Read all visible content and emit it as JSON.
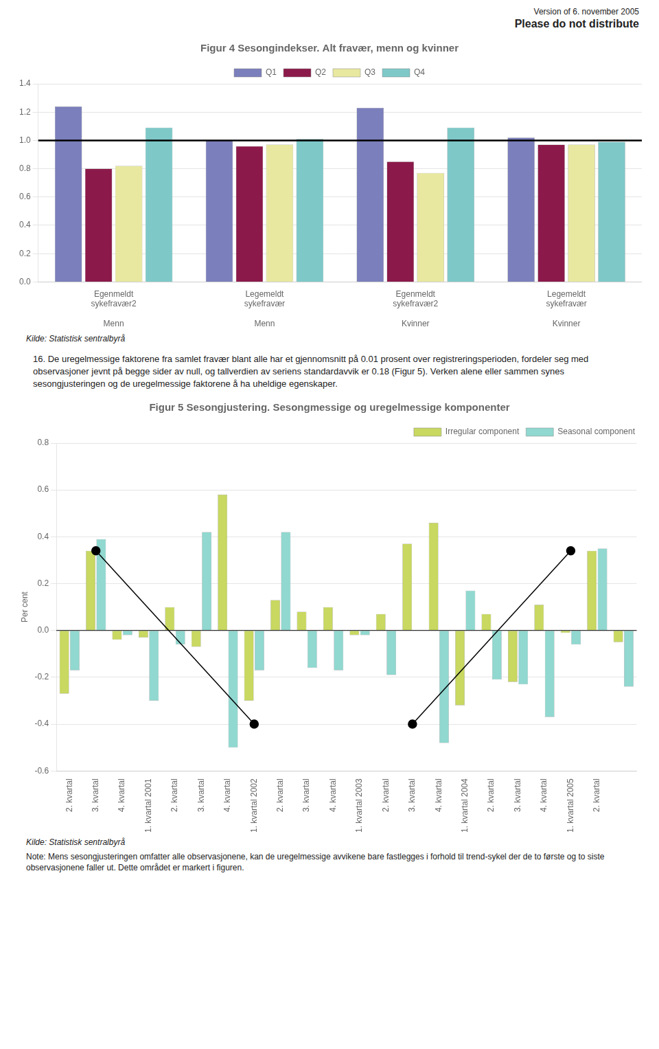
{
  "chart_data": [
    {
      "type": "bar",
      "title": "Figur 4 Sesongindekser. Alt fravær, menn og kvinner",
      "annotations": [
        "Version of 6. november 2005",
        "Please do not distribute",
        "Kilde: Statistisk sentralbyrå",
        "16. De uregelmessige faktorene fra samlet fravær blant alle har et gjennomsnitt på 0.01 prosent over registreringsperioden, fordeler seg med observasjoner jevnt på begge sider av null, og tallverdien av seriens standardavvik er 0.18 (Figur 5). Verken alene eller sammen synes sesongjusteringen og de uregelmessige faktorene å ha uheldige egenskaper."
      ],
      "categories": [
        "Egenmeldt\nsykefravær2\n\nMenn",
        "Legemeldt\nsykefravær\n\nMenn",
        "Egenmeldt\nsykefravær2\n\nKvinner",
        "Legemeldt\nsykefravær\n\nKvinner"
      ],
      "series": [
        {
          "name": "Q1",
          "color": "#7B7FBB",
          "values": [
            1.24,
            1.0,
            1.23,
            1.02
          ]
        },
        {
          "name": "Q2",
          "color": "#8B1A4A",
          "values": [
            0.8,
            0.96,
            0.85,
            0.97
          ]
        },
        {
          "name": "Q3",
          "color": "#E8E8A0",
          "values": [
            0.82,
            0.97,
            0.77,
            0.97
          ]
        },
        {
          "name": "Q4",
          "color": "#7EC8C8",
          "values": [
            1.09,
            1.01,
            1.09,
            0.99
          ]
        }
      ],
      "hline": 1.0,
      "ylim": [
        0.0,
        1.4
      ],
      "yticks": [
        {
          "value": 0.0,
          "label": "0.0"
        },
        0.2,
        0.4,
        0.6,
        0.8,
        {
          "value": 1.0,
          "label": "1.0"
        },
        1.2,
        1.4
      ],
      "grid": true,
      "legend": "upper center"
    },
    {
      "type": "bar",
      "title": "Figur 5 Sesongjustering. Sesongmessige og uregelmessige komponenter",
      "ylabel": "Per cent",
      "annotations": [
        "Kilde: Statistisk sentralbyrå",
        "Note: Mens sesongjusteringen omfatter alle observasjonene, kan de uregelmessige avvikene bare fastlegges i forhold til trend-sykel der de to første og to siste observasjonene faller ut. Dette området er markert i figuren."
      ],
      "categories": [
        "2. kvartal",
        "3. kvartal",
        "4. kvartal",
        "1. kvartal 2001",
        "2. kvartal",
        "3. kvartal",
        "4. kvartal",
        "1. kvartal 2002",
        "2. kvartal",
        "3. kvartal",
        "4. kvartal",
        "1. kvartal 2003",
        "2. kvartal",
        "3. kvartal",
        "4. kvartal",
        "1. kvartal 2004",
        "2. kvartal",
        "3. kvartal",
        "4. kvartal",
        "1. kvartal 2005",
        "2. kvartal",
        null
      ],
      "series": [
        {
          "name": "Irregular component",
          "color": "#C8D860",
          "values": [
            -0.27,
            0.34,
            -0.04,
            -0.03,
            0.1,
            -0.07,
            0.58,
            -0.3,
            0.13,
            0.08,
            0.1,
            -0.02,
            0.07,
            0.37,
            0.46,
            -0.32,
            0.07,
            -0.22,
            0.11,
            -0.01,
            0.34,
            -0.05
          ]
        },
        {
          "name": "Seasonal component",
          "color": "#90D8D0",
          "values": [
            -0.17,
            0.39,
            -0.02,
            -0.3,
            -0.06,
            0.42,
            -0.5,
            -0.17,
            0.42,
            -0.16,
            -0.17,
            -0.02,
            -0.19,
            0.0,
            -0.48,
            0.17,
            -0.21,
            -0.23,
            -0.37,
            -0.06,
            0.35,
            -0.24
          ]
        },
        {
          "type": "line",
          "color": "#000000",
          "marker": "circle",
          "values": [
            null,
            0.34,
            null,
            null,
            null,
            null,
            null,
            -0.4,
            null,
            null,
            null,
            null,
            null,
            null,
            null,
            null,
            null,
            null,
            null,
            null,
            null,
            null
          ]
        },
        {
          "type": "line",
          "color": "#000000",
          "marker": "circle",
          "values": [
            null,
            null,
            null,
            null,
            null,
            null,
            null,
            null,
            null,
            null,
            null,
            null,
            null,
            -0.4,
            null,
            null,
            null,
            null,
            null,
            0.34,
            null,
            null
          ]
        }
      ],
      "hline": 0,
      "ylim": [
        -0.6,
        0.8
      ],
      "yticks": [
        -0.6,
        -0.4,
        -0.2,
        {
          "value": 0.0,
          "label": "0.0"
        },
        0.2,
        0.4,
        0.6,
        0.8
      ],
      "grid": true,
      "legend": "upper right"
    }
  ]
}
